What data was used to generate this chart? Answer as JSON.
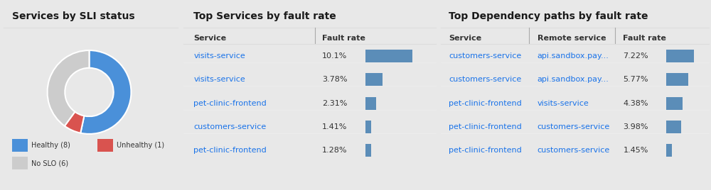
{
  "panel1": {
    "title": "Services by SLI status",
    "donut_values": [
      8,
      1,
      6
    ],
    "donut_colors": [
      "#4a90d9",
      "#d9534f",
      "#cccccc"
    ],
    "donut_labels": [
      "Healthy (8)",
      "Unhealthy (1)",
      "No SLO (6)"
    ],
    "bg_color": "#f5f5f5"
  },
  "panel2": {
    "title": "Top Services by fault rate",
    "col_service": "Service",
    "col_fault": "Fault rate",
    "rows": [
      {
        "service": "visits-service",
        "fault": "10.1%",
        "bar_width": 0.75
      },
      {
        "service": "visits-service",
        "fault": "3.78%",
        "bar_width": 0.28
      },
      {
        "service": "pet-clinic-frontend",
        "fault": "2.31%",
        "bar_width": 0.17
      },
      {
        "service": "customers-service",
        "fault": "1.41%",
        "bar_width": 0.1
      },
      {
        "service": "pet-clinic-frontend",
        "fault": "1.28%",
        "bar_width": 0.095
      }
    ],
    "bar_color": "#5b8db8",
    "link_color": "#1a73e8",
    "bg_color": "#ffffff"
  },
  "panel3": {
    "title": "Top Dependency paths by fault rate",
    "col_service": "Service",
    "col_remote": "Remote service",
    "col_fault": "Fault rate",
    "rows": [
      {
        "service": "customers-service",
        "remote": "api.sandbox.pay...",
        "fault": "7.22%",
        "bar_width": 0.75
      },
      {
        "service": "customers-service",
        "remote": "api.sandbox.pay...",
        "fault": "5.77%",
        "bar_width": 0.6
      },
      {
        "service": "pet-clinic-frontend",
        "remote": "visits-service",
        "fault": "4.38%",
        "bar_width": 0.45
      },
      {
        "service": "pet-clinic-frontend",
        "remote": "customers-service",
        "fault": "3.98%",
        "bar_width": 0.41
      },
      {
        "service": "pet-clinic-frontend",
        "remote": "customers-service",
        "fault": "1.45%",
        "bar_width": 0.15
      }
    ],
    "bar_color": "#5b8db8",
    "link_color": "#1a73e8",
    "bg_color": "#ffffff"
  },
  "outer_bg": "#e8e8e8",
  "panel_bg": "#ffffff",
  "title_fontsize": 10,
  "header_fontsize": 8,
  "row_fontsize": 8
}
